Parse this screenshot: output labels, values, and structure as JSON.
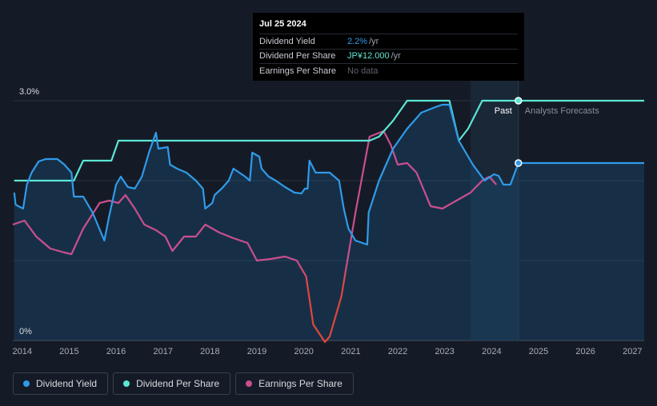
{
  "tooltip": {
    "date": "Jul 25 2024",
    "rows": [
      {
        "label": "Dividend Yield",
        "value": "2.2%",
        "unit": "/yr"
      },
      {
        "label": "Dividend Per Share",
        "value": "JP¥12.000",
        "unit": "/yr"
      },
      {
        "label": "Earnings Per Share",
        "value": "No data",
        "unit": ""
      }
    ]
  },
  "colors": {
    "background": "#151b26",
    "dividend_yield": "#2f9bea",
    "dividend_per_share": "#5ce6d4",
    "earnings_per_share": "#c94f8f",
    "eps_negative": "#e0463e"
  },
  "legend": [
    {
      "label": "Dividend Yield",
      "color": "#2f9bea"
    },
    {
      "label": "Dividend Per Share",
      "color": "#5ce6d4"
    },
    {
      "label": "Earnings Per Share",
      "color": "#c94f8f"
    }
  ],
  "chart_data": {
    "type": "line",
    "x_ticks": [
      "2014",
      "2015",
      "2016",
      "2017",
      "2018",
      "2019",
      "2020",
      "2021",
      "2022",
      "2023",
      "2024",
      "2025",
      "2026",
      "2027"
    ],
    "y_ticks": [
      "0%",
      "3.0%"
    ],
    "ylim": [
      0,
      3.0
    ],
    "xlim": [
      2013.8,
      2027.25
    ],
    "past_label": "Past",
    "forecast_label": "Analysts Forecasts",
    "forecast_start": 2024.57,
    "series": [
      {
        "name": "Dividend Yield",
        "unit": "%",
        "area": true,
        "points": [
          [
            2013.83,
            1.85
          ],
          [
            2013.86,
            1.7
          ],
          [
            2013.92,
            1.68
          ],
          [
            2014.02,
            1.65
          ],
          [
            2014.1,
            1.95
          ],
          [
            2014.2,
            2.1
          ],
          [
            2014.35,
            2.24
          ],
          [
            2014.5,
            2.27
          ],
          [
            2014.75,
            2.27
          ],
          [
            2014.9,
            2.2
          ],
          [
            2015.05,
            2.1
          ],
          [
            2015.1,
            1.8
          ],
          [
            2015.3,
            1.8
          ],
          [
            2015.5,
            1.6
          ],
          [
            2015.75,
            1.25
          ],
          [
            2015.85,
            1.55
          ],
          [
            2016.0,
            1.95
          ],
          [
            2016.1,
            2.05
          ],
          [
            2016.25,
            1.92
          ],
          [
            2016.4,
            1.9
          ],
          [
            2016.55,
            2.05
          ],
          [
            2016.7,
            2.35
          ],
          [
            2016.85,
            2.6
          ],
          [
            2016.9,
            2.4
          ],
          [
            2017.1,
            2.42
          ],
          [
            2017.15,
            2.2
          ],
          [
            2017.3,
            2.15
          ],
          [
            2017.5,
            2.1
          ],
          [
            2017.7,
            2.0
          ],
          [
            2017.85,
            1.9
          ],
          [
            2017.9,
            1.65
          ],
          [
            2018.05,
            1.72
          ],
          [
            2018.1,
            1.82
          ],
          [
            2018.25,
            1.9
          ],
          [
            2018.4,
            2.0
          ],
          [
            2018.5,
            2.15
          ],
          [
            2018.75,
            2.05
          ],
          [
            2018.85,
            2.0
          ],
          [
            2018.9,
            2.35
          ],
          [
            2019.05,
            2.3
          ],
          [
            2019.1,
            2.15
          ],
          [
            2019.25,
            2.05
          ],
          [
            2019.4,
            2.0
          ],
          [
            2019.6,
            1.92
          ],
          [
            2019.8,
            1.85
          ],
          [
            2019.95,
            1.84
          ],
          [
            2020.02,
            1.9
          ],
          [
            2020.08,
            1.9
          ],
          [
            2020.12,
            2.25
          ],
          [
            2020.25,
            2.1
          ],
          [
            2020.35,
            2.1
          ],
          [
            2020.55,
            2.1
          ],
          [
            2020.75,
            2.0
          ],
          [
            2020.85,
            1.65
          ],
          [
            2020.95,
            1.4
          ],
          [
            2021.1,
            1.25
          ],
          [
            2021.35,
            1.2
          ],
          [
            2021.38,
            1.6
          ],
          [
            2021.6,
            2.0
          ],
          [
            2021.9,
            2.4
          ],
          [
            2022.2,
            2.65
          ],
          [
            2022.5,
            2.85
          ],
          [
            2022.8,
            2.92
          ],
          [
            2022.95,
            2.95
          ],
          [
            2023.1,
            2.95
          ],
          [
            2023.3,
            2.5
          ],
          [
            2023.6,
            2.2
          ],
          [
            2023.85,
            2.0
          ],
          [
            2024.05,
            2.08
          ],
          [
            2024.15,
            2.06
          ],
          [
            2024.25,
            1.95
          ],
          [
            2024.4,
            1.95
          ],
          [
            2024.57,
            2.22
          ],
          [
            2027.25,
            2.22
          ]
        ]
      },
      {
        "name": "Dividend Per Share",
        "unit": "JP¥",
        "points": [
          [
            2013.83,
            2.0
          ],
          [
            2014.5,
            2.0
          ],
          [
            2015.1,
            2.0
          ],
          [
            2015.3,
            2.25
          ],
          [
            2015.9,
            2.25
          ],
          [
            2016.05,
            2.5
          ],
          [
            2021.4,
            2.5
          ],
          [
            2021.6,
            2.55
          ],
          [
            2021.9,
            2.75
          ],
          [
            2022.2,
            3.0
          ],
          [
            2023.1,
            3.0
          ],
          [
            2023.3,
            2.5
          ],
          [
            2023.5,
            2.65
          ],
          [
            2023.8,
            3.0
          ],
          [
            2027.25,
            3.0
          ]
        ]
      },
      {
        "name": "Earnings Per Share",
        "points": [
          [
            2013.8,
            1.45
          ],
          [
            2014.05,
            1.5
          ],
          [
            2014.3,
            1.3
          ],
          [
            2014.6,
            1.15
          ],
          [
            2014.9,
            1.1
          ],
          [
            2015.05,
            1.08
          ],
          [
            2015.3,
            1.4
          ],
          [
            2015.65,
            1.72
          ],
          [
            2015.85,
            1.75
          ],
          [
            2016.05,
            1.72
          ],
          [
            2016.2,
            1.82
          ],
          [
            2016.4,
            1.65
          ],
          [
            2016.6,
            1.45
          ],
          [
            2016.85,
            1.38
          ],
          [
            2017.05,
            1.3
          ],
          [
            2017.2,
            1.12
          ],
          [
            2017.45,
            1.3
          ],
          [
            2017.7,
            1.3
          ],
          [
            2017.9,
            1.45
          ],
          [
            2018.2,
            1.35
          ],
          [
            2018.5,
            1.28
          ],
          [
            2018.8,
            1.22
          ],
          [
            2019.0,
            1.0
          ],
          [
            2019.3,
            1.02
          ],
          [
            2019.6,
            1.05
          ],
          [
            2019.85,
            1.0
          ],
          [
            2020.05,
            0.8
          ],
          [
            2020.2,
            0.2
          ],
          [
            2020.45,
            -0.02
          ],
          [
            2020.55,
            0.05
          ],
          [
            2020.8,
            0.55
          ],
          [
            2021.1,
            1.6
          ],
          [
            2021.4,
            2.55
          ],
          [
            2021.7,
            2.62
          ],
          [
            2021.85,
            2.45
          ],
          [
            2022.0,
            2.2
          ],
          [
            2022.2,
            2.22
          ],
          [
            2022.4,
            2.1
          ],
          [
            2022.7,
            1.68
          ],
          [
            2022.95,
            1.65
          ],
          [
            2023.25,
            1.75
          ],
          [
            2023.55,
            1.85
          ],
          [
            2023.8,
            2.0
          ],
          [
            2023.95,
            2.05
          ],
          [
            2024.1,
            1.95
          ]
        ]
      }
    ]
  }
}
